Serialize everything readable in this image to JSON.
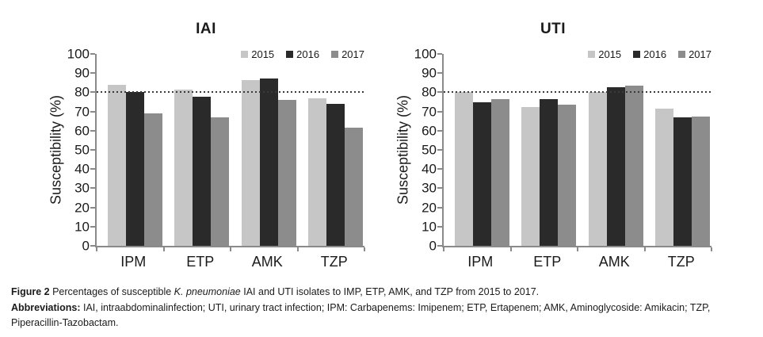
{
  "caption": {
    "label": "Figure 2",
    "text_before_italic": " Percentages of susceptible ",
    "italic": "K. pneumoniae",
    "text_after_italic": " IAI and UTI isolates to IMP, ETP, AMK, and TZP from 2015 to 2017.",
    "abbreviations_label": "Abbreviations:",
    "abbreviations_text": " IAI, intraabdominalinfection; UTI, urinary tract infection; IPM: Carbapenems: Imipenem; ETP, Ertapenem; AMK, Aminoglycoside: Amikacin; TZP, Piperacillin-Tazobactam."
  },
  "chart_data": [
    {
      "type": "bar",
      "title": "IAI",
      "ylabel": "Susceptibility (%)",
      "xlabel": "",
      "categories": [
        "IPM",
        "ETP",
        "AMK",
        "TZP"
      ],
      "series": [
        {
          "name": "2015",
          "color": "#c6c6c6",
          "values": [
            84,
            81.5,
            86.5,
            77
          ]
        },
        {
          "name": "2016",
          "color": "#2a2a2a",
          "values": [
            80,
            77.5,
            87,
            74
          ]
        },
        {
          "name": "2017",
          "color": "#8c8c8c",
          "values": [
            69,
            67,
            76,
            61.5
          ]
        }
      ],
      "ylim": [
        0,
        100
      ],
      "ytick_step": 10,
      "reference_line": 80,
      "reference_line_color": "#3a3a3a",
      "axis_color": "#8a8a8a",
      "grid": false,
      "legend_position": "top-right"
    },
    {
      "type": "bar",
      "title": "UTI",
      "ylabel": "Susceptibility (%)",
      "xlabel": "",
      "categories": [
        "IPM",
        "ETP",
        "AMK",
        "TZP"
      ],
      "series": [
        {
          "name": "2015",
          "color": "#c6c6c6",
          "values": [
            80,
            72.5,
            80,
            71.5
          ]
        },
        {
          "name": "2016",
          "color": "#2a2a2a",
          "values": [
            75,
            76.5,
            82.5,
            67
          ]
        },
        {
          "name": "2017",
          "color": "#8c8c8c",
          "values": [
            76.5,
            73.5,
            83.5,
            67.5
          ]
        }
      ],
      "ylim": [
        0,
        100
      ],
      "ytick_step": 10,
      "reference_line": 80,
      "reference_line_color": "#3a3a3a",
      "axis_color": "#8a8a8a",
      "grid": false,
      "legend_position": "top-right"
    }
  ]
}
